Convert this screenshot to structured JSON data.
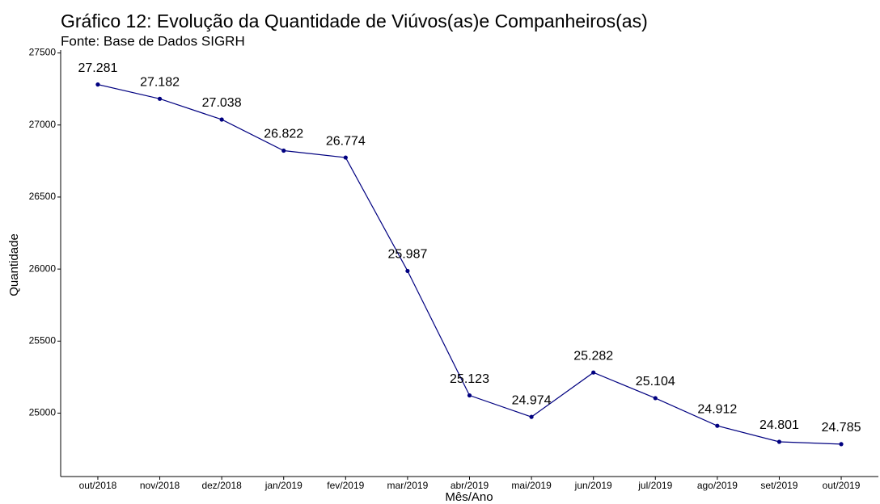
{
  "chart_data": {
    "type": "line",
    "title": "Gráfico 12: Evolução da Quantidade de Viúvos(as)e Companheiros(as)",
    "subtitle": "Fonte: Base de Dados SIGRH",
    "x_label": "Mês/Ano",
    "y_label": "Quantidade",
    "categories": [
      "out/2018",
      "nov/2018",
      "dez/2018",
      "jan/2019",
      "fev/2019",
      "mar/2019",
      "abr/2019",
      "mai/2019",
      "jun/2019",
      "jul/2019",
      "ago/2019",
      "set/2019",
      "out/2019"
    ],
    "series": [
      {
        "name": "Quantidade",
        "color": "#000080",
        "values": [
          27281,
          27182,
          27038,
          26822,
          26774,
          25987,
          25123,
          24974,
          25282,
          25104,
          24912,
          24801,
          24785
        ],
        "value_labels": [
          "27.281",
          "27.182",
          "27.038",
          "26.822",
          "26.774",
          "25.987",
          "25.123",
          "24.974",
          "25.282",
          "25.104",
          "24.912",
          "24.801",
          "24.785"
        ]
      }
    ],
    "ylim": [
      24560,
      27520
    ],
    "yticks": [
      25000,
      25500,
      26000,
      26500,
      27000,
      27500
    ]
  }
}
